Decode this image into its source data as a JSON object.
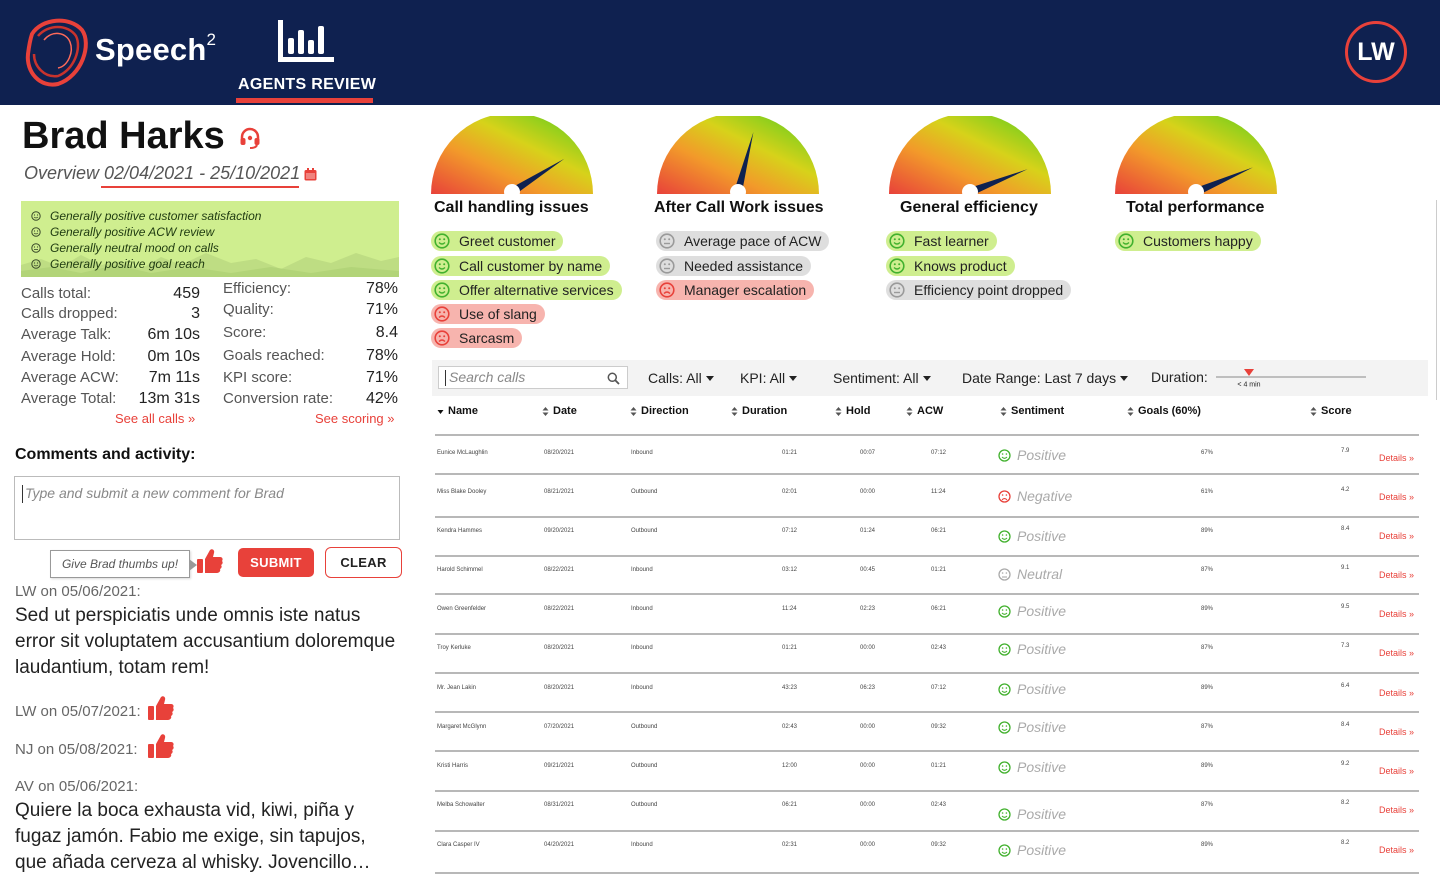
{
  "header": {
    "brand": "Speech",
    "brand_sup": "2",
    "nav_label": "AGENTS REVIEW",
    "user_initials": "LW",
    "accent_color": "#e8413a",
    "bar_color": "#0f2150"
  },
  "agent": {
    "name": "Brad Harks",
    "overview_label": "Overview",
    "date_range": "02/04/2021 - 25/10/2021"
  },
  "summary": [
    "Generally positive customer satisfaction",
    "Generally positive ACW review",
    "Generally neutral mood on calls",
    "Generally positive goal reach"
  ],
  "stats_left": [
    {
      "label": "Calls total:",
      "value": "459"
    },
    {
      "label": "Calls dropped:",
      "value": "3"
    },
    {
      "label": "Average Talk:",
      "value": "6m 10s"
    },
    {
      "label": "Average Hold:",
      "value": "0m 10s"
    },
    {
      "label": "Average ACW:",
      "value": "7m 11s"
    },
    {
      "label": "Average Total:",
      "value": "13m 31s"
    }
  ],
  "stats_right": [
    {
      "label": "Efficiency:",
      "value": "78%"
    },
    {
      "label": "Quality:",
      "value": "71%"
    },
    {
      "label": "Score:",
      "value": "8.4"
    },
    {
      "label": "Goals reached:",
      "value": "78%"
    },
    {
      "label": "KPI score:",
      "value": "71%"
    },
    {
      "label": "Conversion rate:",
      "value": "42%"
    }
  ],
  "links": {
    "see_all_calls": "See all calls »",
    "see_scoring": "See scoring »"
  },
  "comments": {
    "title": "Comments and activity:",
    "placeholder": "Type and submit a new comment for Brad",
    "thumbs_tip": "Give Brad thumbs up!",
    "submit": "SUBMIT",
    "clear": "CLEAR",
    "items": [
      {
        "meta": "LW on 05/06/2021:",
        "body": "Sed ut perspiciatis unde omnis iste natus error sit voluptatem accusantium doloremque laudantium, totam rem!"
      },
      {
        "meta": "LW on 05/07/2021:",
        "thumb": true
      },
      {
        "meta": "NJ on 05/08/2021:",
        "thumb": true
      },
      {
        "meta": "AV on 05/06/2021:",
        "body": "Quiere la boca exhausta vid, kiwi, piña y fugaz jamón. Fabio me exige, sin tapujos, que añada cerveza al whisky. Jovencillo…"
      }
    ]
  },
  "gauges": [
    {
      "title": "Call handling issues",
      "level": 0.82,
      "chips": [
        {
          "label": "Greet customer",
          "mood": "pos"
        },
        {
          "label": "Call customer by name",
          "mood": "pos"
        },
        {
          "label": "Offer alternative services",
          "mood": "pos"
        },
        {
          "label": "Use of slang",
          "mood": "neg"
        },
        {
          "label": "Sarcasm",
          "mood": "neg"
        }
      ]
    },
    {
      "title": "After Call Work issues",
      "level": 0.58,
      "chips": [
        {
          "label": "Average pace of ACW",
          "mood": "neu"
        },
        {
          "label": "Needed assistance",
          "mood": "neu"
        },
        {
          "label": "Manager escalation",
          "mood": "neg"
        }
      ]
    },
    {
      "title": "General efficiency",
      "level": 0.88,
      "chips": [
        {
          "label": "Fast learner",
          "mood": "pos"
        },
        {
          "label": "Knows product",
          "mood": "pos"
        },
        {
          "label": "Efficiency point dropped",
          "mood": "neu"
        }
      ]
    },
    {
      "title": "Total performance",
      "level": 0.87,
      "chips": [
        {
          "label": "Customers happy",
          "mood": "pos"
        }
      ]
    }
  ],
  "filters": {
    "search_placeholder": "Search calls",
    "calls": "Calls: All",
    "kpi": "KPI: All",
    "sentiment": "Sentiment: All",
    "date_range": "Date Range: Last 7 days",
    "duration": "Duration:",
    "duration_marker": "< 4 min"
  },
  "table": {
    "columns": [
      "Name",
      "Date",
      "Direction",
      "Duration",
      "Hold",
      "ACW",
      "Sentiment",
      "Goals (60%)",
      "Score"
    ],
    "details_label": "Details »",
    "rows": [
      {
        "name": "Eunice McLaughlin",
        "date": "08/20/2021",
        "direction": "Inbound",
        "duration": "01:21",
        "hold": "00:07",
        "acw": "07:12",
        "sentiment": "Positive",
        "goals": "67%",
        "score": "7.9"
      },
      {
        "name": "Miss Blake Dooley",
        "date": "08/21/2021",
        "direction": "Outbound",
        "duration": "02:01",
        "hold": "00:00",
        "acw": "11:24",
        "sentiment": "Negative",
        "goals": "61%",
        "score": "4.2"
      },
      {
        "name": "Kendra Hammes",
        "date": "09/20/2021",
        "direction": "Outbound",
        "duration": "07:12",
        "hold": "01:24",
        "acw": "06:21",
        "sentiment": "Positive",
        "goals": "89%",
        "score": "8.4"
      },
      {
        "name": "Harold Schimmel",
        "date": "08/22/2021",
        "direction": "Inbound",
        "duration": "03:12",
        "hold": "00:45",
        "acw": "01:21",
        "sentiment": "Neutral",
        "goals": "87%",
        "score": "9.1"
      },
      {
        "name": "Owen Greenfelder",
        "date": "08/22/2021",
        "direction": "Inbound",
        "duration": "11:24",
        "hold": "02:23",
        "acw": "06:21",
        "sentiment": "Positive",
        "goals": "89%",
        "score": "9.5"
      },
      {
        "name": "Troy Kerluke",
        "date": "08/20/2021",
        "direction": "Inbound",
        "duration": "01:21",
        "hold": "00:00",
        "acw": "02:43",
        "sentiment": "Positive",
        "goals": "87%",
        "score": "7.3"
      },
      {
        "name": "Mr. Jean Lakin",
        "date": "08/20/2021",
        "direction": "Inbound",
        "duration": "43:23",
        "hold": "06:23",
        "acw": "07:12",
        "sentiment": "Positive",
        "goals": "89%",
        "score": "6.4"
      },
      {
        "name": "Margaret McGlynn",
        "date": "07/20/2021",
        "direction": "Outbound",
        "duration": "02:43",
        "hold": "00:00",
        "acw": "09:32",
        "sentiment": "Positive",
        "goals": "87%",
        "score": "8.4"
      },
      {
        "name": "Kristi Harris",
        "date": "09/21/2021",
        "direction": "Outbound",
        "duration": "12:00",
        "hold": "00:00",
        "acw": "01:21",
        "sentiment": "Positive",
        "goals": "89%",
        "score": "9.2"
      },
      {
        "name": "Melba Schowalter",
        "date": "08/31/2021",
        "direction": "Outbound",
        "duration": "06:21",
        "hold": "00:00",
        "acw": "02:43",
        "sentiment": "Positive",
        "goals": "87%",
        "score": "8.2"
      },
      {
        "name": "Clara Casper IV",
        "date": "04/20/2021",
        "direction": "Inbound",
        "duration": "02:31",
        "hold": "00:00",
        "acw": "09:32",
        "sentiment": "Positive",
        "goals": "89%",
        "score": "8.2"
      }
    ]
  }
}
